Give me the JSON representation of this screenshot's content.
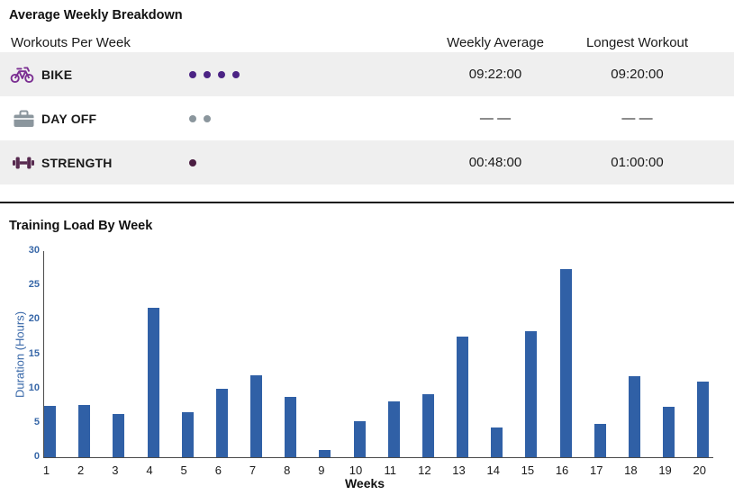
{
  "section1_title": "Average Weekly Breakdown",
  "section2_title": "Training Load By Week",
  "table": {
    "header": {
      "col1": "Workouts Per Week",
      "col2": "Weekly Average",
      "col3": "Longest Workout"
    },
    "rows": [
      {
        "name": "BIKE",
        "icon": "bike-icon",
        "icon_color": "#7b2f92",
        "dots": 4,
        "dot_color": "#4b2384",
        "weekly_average": "09:22:00",
        "longest_workout": "09:20:00"
      },
      {
        "name": "DAY OFF",
        "icon": "briefcase-icon",
        "icon_color": "#8b969d",
        "dots": 2,
        "dot_color": "#8b969d",
        "weekly_average": "— —",
        "longest_workout": "— —"
      },
      {
        "name": "STRENGTH",
        "icon": "dumbbell-icon",
        "icon_color": "#572a4f",
        "dots": 1,
        "dot_color": "#4a1d41",
        "weekly_average": "00:48:00",
        "longest_workout": "01:00:00"
      }
    ]
  },
  "chart_data": {
    "type": "bar",
    "title": "Training Load By Week",
    "xlabel": "Weeks",
    "ylabel": "Duration (Hours)",
    "categories": [
      "1",
      "2",
      "3",
      "4",
      "5",
      "6",
      "7",
      "8",
      "9",
      "10",
      "11",
      "12",
      "13",
      "14",
      "15",
      "16",
      "17",
      "18",
      "19",
      "20"
    ],
    "values": [
      7.5,
      7.6,
      6.3,
      21.8,
      6.5,
      10.0,
      11.9,
      8.8,
      1.0,
      5.3,
      8.1,
      9.2,
      17.6,
      4.3,
      18.4,
      27.4,
      4.8,
      11.8,
      7.4,
      11.0
    ],
    "ylim": [
      0,
      30
    ],
    "yticks": [
      0,
      5,
      10,
      15,
      20,
      25,
      30
    ],
    "grid": false,
    "legend_position": "none",
    "bar_color": "#3060a6",
    "axis_label_color": "#3767a8",
    "axis_line_color": "#4a4a4a"
  }
}
